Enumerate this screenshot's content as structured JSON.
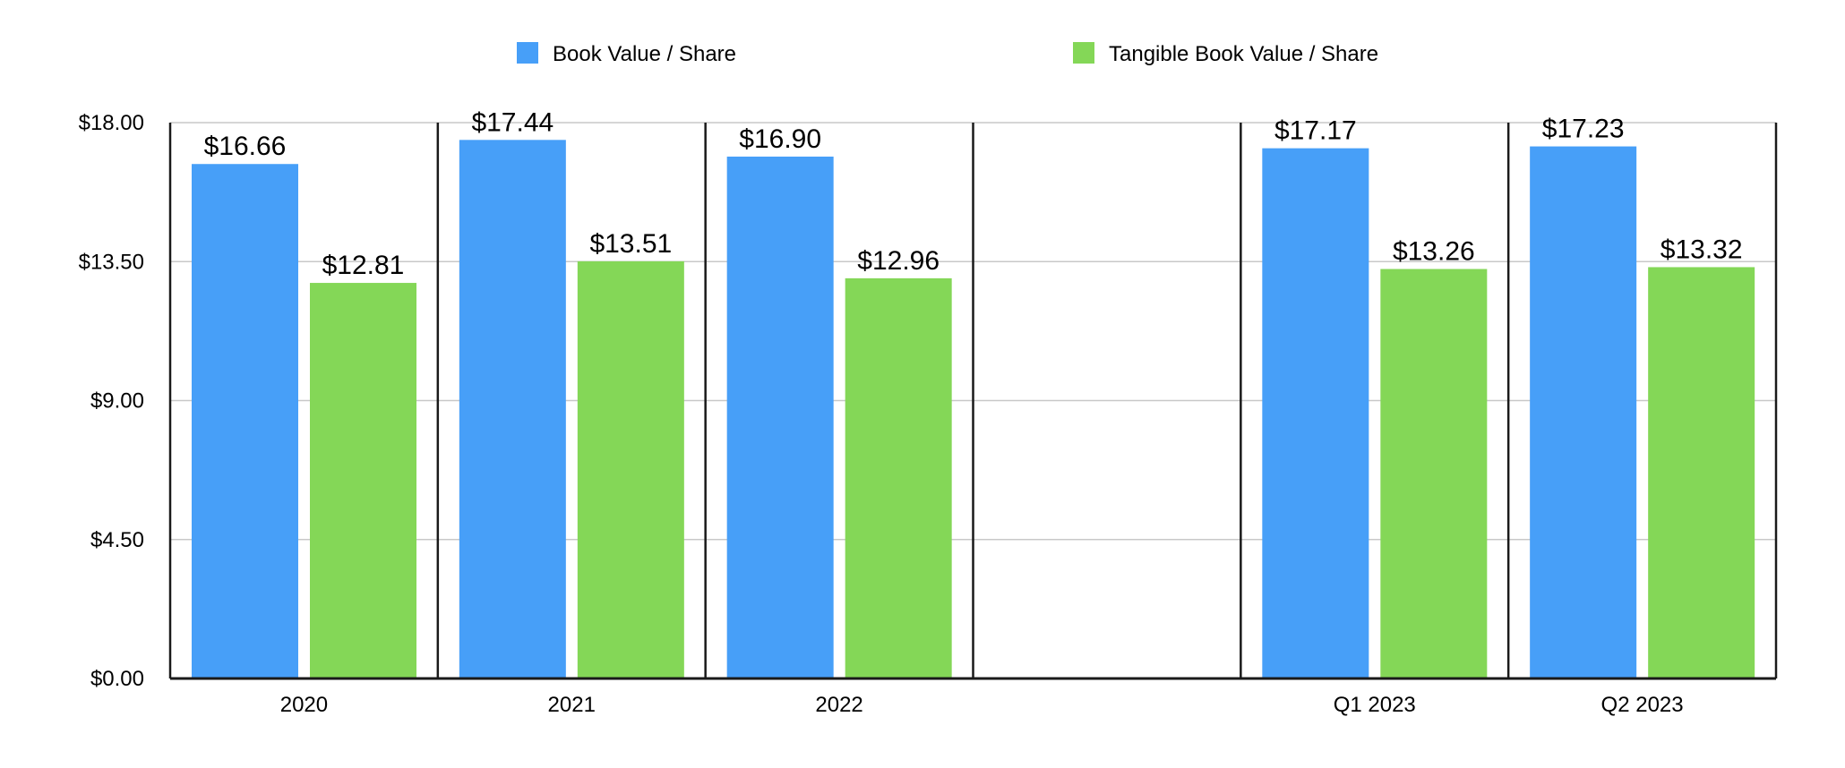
{
  "chart_data": {
    "type": "bar",
    "categories": [
      "2020",
      "2021",
      "2022",
      "",
      "Q1 2023",
      "Q2 2023"
    ],
    "series": [
      {
        "name": "Book Value / Share",
        "color": "#479ff8",
        "values": [
          16.66,
          17.44,
          16.9,
          null,
          17.17,
          17.23
        ],
        "labels": [
          "$16.66",
          "$17.44",
          "$16.90",
          "",
          "$17.17",
          "$17.23"
        ]
      },
      {
        "name": "Tangible Book Value / Share",
        "color": "#84d757",
        "values": [
          12.81,
          13.51,
          12.96,
          null,
          13.26,
          13.32
        ],
        "labels": [
          "$12.81",
          "$13.51",
          "$12.96",
          "",
          "$13.26",
          "$13.32"
        ]
      }
    ],
    "yticks": [
      0,
      4.5,
      9,
      13.5,
      18
    ],
    "ytick_labels": [
      "$0.00",
      "$4.50",
      "$9.00",
      "$13.50",
      "$18.00"
    ],
    "ylim": [
      0,
      18
    ],
    "grid": true,
    "legend": "top-center"
  }
}
